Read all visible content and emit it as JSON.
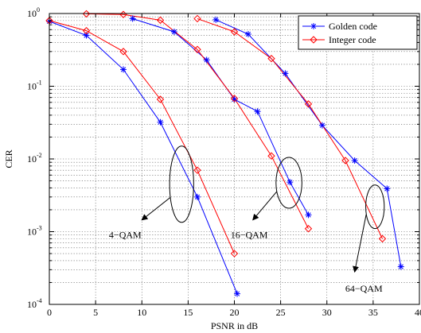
{
  "chart_data": {
    "type": "line",
    "xlabel": "PSNR in dB",
    "ylabel": "CER",
    "xlim": [
      0,
      40
    ],
    "ylim": [
      0.0001,
      1
    ],
    "yscale": "log",
    "grid": true,
    "legend_position": "top-right",
    "x_ticks": [
      {
        "value": 0,
        "label": "0"
      },
      {
        "value": 5,
        "label": "5"
      },
      {
        "value": 10,
        "label": "10"
      },
      {
        "value": 15,
        "label": "15"
      },
      {
        "value": 20,
        "label": "20"
      },
      {
        "value": 25,
        "label": "25"
      },
      {
        "value": 30,
        "label": "30"
      },
      {
        "value": 35,
        "label": "35"
      },
      {
        "value": 40,
        "label": "40"
      }
    ],
    "y_ticks": [
      {
        "value": 1,
        "base": "10",
        "exp": "0"
      },
      {
        "value": 0.1,
        "base": "10",
        "exp": "-1"
      },
      {
        "value": 0.01,
        "base": "10",
        "exp": "-2"
      },
      {
        "value": 0.001,
        "base": "10",
        "exp": "-3"
      },
      {
        "value": 0.0001,
        "base": "10",
        "exp": "-4"
      }
    ],
    "series": [
      {
        "name": "Golden code",
        "color": "#0000ff",
        "marker": "asterisk",
        "group": "4-QAM",
        "points": [
          [
            0,
            0.78
          ],
          [
            4,
            0.5
          ],
          [
            8,
            0.17
          ],
          [
            12,
            0.032
          ],
          [
            16,
            0.003
          ],
          [
            20.3,
            0.00014
          ]
        ]
      },
      {
        "name": "Integer code",
        "color": "#ff0000",
        "marker": "diamond",
        "group": "4-QAM",
        "points": [
          [
            0,
            0.8
          ],
          [
            4,
            0.58
          ],
          [
            8,
            0.3
          ],
          [
            12,
            0.066
          ],
          [
            16,
            0.007
          ],
          [
            20,
            0.0005
          ]
        ]
      },
      {
        "name": "Golden code",
        "color": "#0000ff",
        "marker": "asterisk",
        "group": "16-QAM",
        "points": [
          [
            9,
            0.85
          ],
          [
            13.5,
            0.56
          ],
          [
            17,
            0.23
          ],
          [
            20,
            0.066
          ],
          [
            22.5,
            0.045
          ],
          [
            26,
            0.0048
          ],
          [
            28,
            0.0017
          ]
        ]
      },
      {
        "name": "Integer code",
        "color": "#ff0000",
        "marker": "diamond",
        "group": "16-QAM",
        "points": [
          [
            4,
            0.99
          ],
          [
            8,
            0.97
          ],
          [
            12,
            0.81
          ],
          [
            16,
            0.32
          ],
          [
            20,
            0.068
          ],
          [
            24,
            0.011
          ],
          [
            28,
            0.0011
          ]
        ]
      },
      {
        "name": "Golden code",
        "color": "#0000ff",
        "marker": "asterisk",
        "group": "64-QAM",
        "points": [
          [
            18,
            0.82
          ],
          [
            21.5,
            0.52
          ],
          [
            25.5,
            0.15
          ],
          [
            29.5,
            0.029
          ],
          [
            33,
            0.0095
          ],
          [
            36.5,
            0.0039
          ],
          [
            38,
            0.00033
          ]
        ]
      },
      {
        "name": "Integer code",
        "color": "#ff0000",
        "marker": "diamond",
        "group": "64-QAM",
        "points": [
          [
            16,
            0.85
          ],
          [
            20,
            0.56
          ],
          [
            24,
            0.24
          ],
          [
            28,
            0.057
          ],
          [
            32,
            0.0095
          ],
          [
            36,
            0.0008
          ]
        ]
      }
    ],
    "legend": [
      {
        "label": "Golden code",
        "color": "#0000ff",
        "marker": "asterisk"
      },
      {
        "label": "Integer code",
        "color": "#ff0000",
        "marker": "diamond"
      }
    ],
    "annotations": [
      {
        "label": "4−QAM",
        "ellipse_center": [
          14.3,
          0.0045
        ],
        "ellipse_rx_data": 1.3,
        "ellipse_decades": 1.05,
        "arrow_to": [
          10,
          0.00145
        ],
        "text_at": [
          8.2,
          0.00082
        ]
      },
      {
        "label": "16−QAM",
        "ellipse_center": [
          25.9,
          0.0047
        ],
        "ellipse_rx_data": 1.4,
        "ellipse_decades": 0.7,
        "arrow_to": [
          22,
          0.00145
        ],
        "text_at": [
          21.6,
          0.00082
        ]
      },
      {
        "label": "64−QAM",
        "ellipse_center": [
          35.2,
          0.0022
        ],
        "ellipse_rx_data": 1.0,
        "ellipse_decades": 0.6,
        "arrow_to": [
          33,
          0.00028
        ],
        "text_at": [
          34.0,
          0.00015
        ]
      }
    ]
  }
}
